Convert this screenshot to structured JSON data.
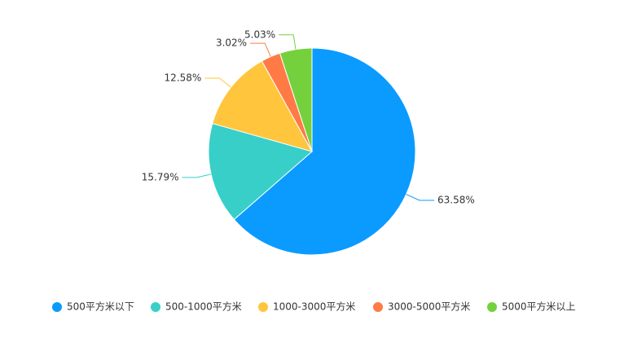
{
  "chart_data": {
    "type": "pie",
    "categories": [
      "500平方米以下",
      "500-1000平方米",
      "1000-3000平方米",
      "3000-5000平方米",
      "5000平方米以上"
    ],
    "values": [
      63.58,
      15.79,
      12.58,
      3.02,
      5.03
    ],
    "value_labels": [
      "63.58%",
      "15.79%",
      "12.58%",
      "3.02%",
      "5.03%"
    ],
    "colors": [
      "#0b9bff",
      "#38cfc9",
      "#ffc53d",
      "#ff7a45",
      "#74d13d"
    ],
    "legend": "bottom"
  }
}
